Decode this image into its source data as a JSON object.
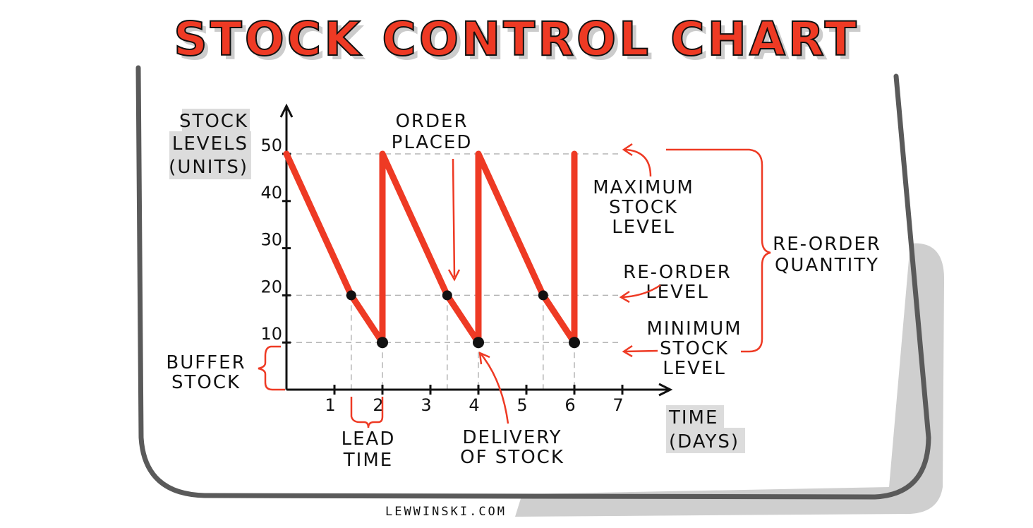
{
  "title": "STOCK CONTROL CHART",
  "credit": "LEWWINSKI.COM",
  "colors": {
    "accent": "#ee3a24",
    "frame": "#555555",
    "shadow": "#cfcfcf",
    "label_bg": "#dcdcdc",
    "ink": "#111111"
  },
  "chart_data": {
    "type": "line",
    "title": "STOCK CONTROL CHART",
    "ylabel": [
      "STOCK",
      "LEVELS",
      "(UNITS)"
    ],
    "xlabel": [
      "TIME",
      "(DAYS)"
    ],
    "xlim": [
      0,
      8
    ],
    "ylim": [
      0,
      50
    ],
    "x_ticks": [
      1,
      2,
      3,
      4,
      5,
      6,
      7
    ],
    "y_ticks": [
      10,
      20,
      30,
      40,
      50
    ],
    "grid": "dashed at 10, 20, 50 units",
    "series": [
      {
        "x": [
          0,
          1.35,
          2,
          2,
          3.35,
          4,
          4,
          5.35,
          6,
          6
        ],
        "y": [
          50,
          20,
          10,
          50,
          20,
          10,
          50,
          20,
          10,
          50
        ]
      }
    ],
    "reorder_points": [
      {
        "x": 1.35,
        "y": 20
      },
      {
        "x": 3.35,
        "y": 20
      },
      {
        "x": 5.35,
        "y": 20
      }
    ],
    "delivery_points": [
      {
        "x": 2,
        "y": 10
      },
      {
        "x": 4,
        "y": 10
      },
      {
        "x": 6,
        "y": 10
      }
    ],
    "reference_levels": [
      {
        "label": [
          "MAXIMUM",
          "STOCK",
          "LEVEL"
        ],
        "y": 50
      },
      {
        "label": [
          "RE-ORDER",
          "LEVEL"
        ],
        "y": 20
      },
      {
        "label": [
          "MINIMUM",
          "STOCK",
          "LEVEL"
        ],
        "y": 10
      }
    ],
    "annotations": {
      "order_placed": [
        "ORDER",
        "PLACED"
      ],
      "reorder_quantity": [
        "RE-ORDER",
        "QUANTITY"
      ],
      "buffer_stock": [
        "BUFFER",
        "STOCK"
      ],
      "lead_time": [
        "LEAD",
        "TIME"
      ],
      "delivery": [
        "DELIVERY",
        "OF STOCK"
      ]
    }
  }
}
